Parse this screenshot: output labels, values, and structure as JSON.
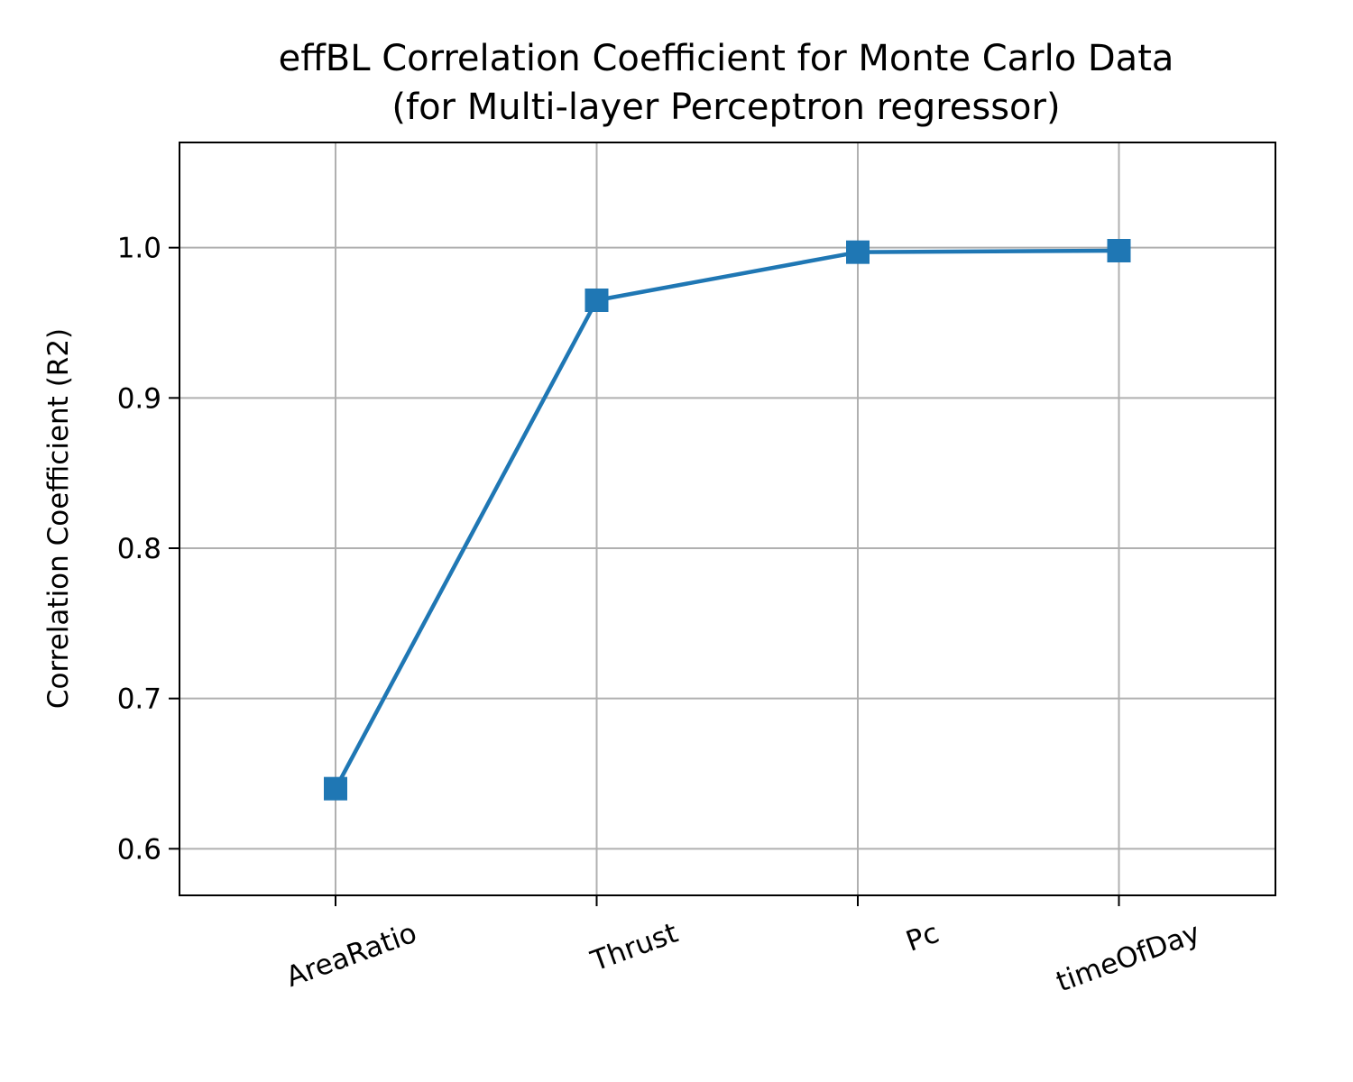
{
  "chart_data": {
    "type": "line",
    "title": "effBL Correlation Coefficient for Monte Carlo Data",
    "subtitle": "(for Multi-layer Perceptron regressor)",
    "xlabel": "",
    "ylabel": "Correlation Coefficient (R2)",
    "categories": [
      "AreaRatio",
      "Thrust",
      "Pc",
      "timeOfDay"
    ],
    "series": [
      {
        "values": [
          0.64,
          0.965,
          0.997,
          0.998
        ],
        "color": "#1f77b4",
        "marker": "square"
      }
    ],
    "ylim": [
      0.569,
      1.07
    ],
    "yticks": [
      0.6,
      0.7,
      0.8,
      0.9,
      1.0
    ],
    "ytick_labels": [
      "0.6",
      "0.7",
      "0.8",
      "0.9",
      "1.0"
    ],
    "grid": true,
    "xtick_rotation": "angled",
    "legend": "none"
  }
}
